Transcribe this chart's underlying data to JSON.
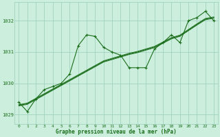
{
  "xlabel": "Graphe pression niveau de la mer (hPa)",
  "bg_color": "#cceedd",
  "grid_color": "#99ccbb",
  "line_color": "#1a6e1a",
  "ylim": [
    1028.7,
    1032.6
  ],
  "xlim": [
    -0.5,
    23.5
  ],
  "yticks": [
    1029,
    1030,
    1031,
    1032
  ],
  "xticks": [
    0,
    1,
    2,
    3,
    4,
    5,
    6,
    7,
    8,
    9,
    10,
    11,
    12,
    13,
    14,
    15,
    16,
    17,
    18,
    19,
    20,
    21,
    22,
    23
  ],
  "main_line": {
    "x": [
      0,
      1,
      2,
      3,
      4,
      5,
      6,
      7,
      8,
      9,
      10,
      11,
      12,
      13,
      14,
      15,
      16,
      17,
      18,
      19,
      20,
      21,
      22,
      23
    ],
    "y": [
      1029.4,
      1029.1,
      1029.5,
      1029.8,
      1029.9,
      1030.0,
      1030.3,
      1031.2,
      1031.55,
      1031.5,
      1031.15,
      1031.0,
      1030.9,
      1030.5,
      1030.5,
      1030.5,
      1031.1,
      1031.3,
      1031.55,
      1031.3,
      1032.0,
      1032.1,
      1032.3,
      1032.0
    ]
  },
  "smooth_lines": [
    [
      1029.3,
      1029.35,
      1029.5,
      1029.65,
      1029.8,
      1029.95,
      1030.1,
      1030.25,
      1030.4,
      1030.55,
      1030.7,
      1030.78,
      1030.86,
      1030.94,
      1031.0,
      1031.08,
      1031.16,
      1031.3,
      1031.44,
      1031.52,
      1031.7,
      1031.88,
      1032.05,
      1032.1
    ],
    [
      1029.32,
      1029.37,
      1029.52,
      1029.67,
      1029.82,
      1029.97,
      1030.12,
      1030.27,
      1030.42,
      1030.57,
      1030.72,
      1030.8,
      1030.88,
      1030.96,
      1031.02,
      1031.1,
      1031.18,
      1031.32,
      1031.46,
      1031.54,
      1031.72,
      1031.9,
      1032.07,
      1032.12
    ],
    [
      1029.28,
      1029.33,
      1029.48,
      1029.63,
      1029.78,
      1029.93,
      1030.08,
      1030.23,
      1030.38,
      1030.53,
      1030.68,
      1030.76,
      1030.84,
      1030.92,
      1030.98,
      1031.06,
      1031.14,
      1031.28,
      1031.42,
      1031.5,
      1031.68,
      1031.86,
      1032.03,
      1032.08
    ]
  ]
}
